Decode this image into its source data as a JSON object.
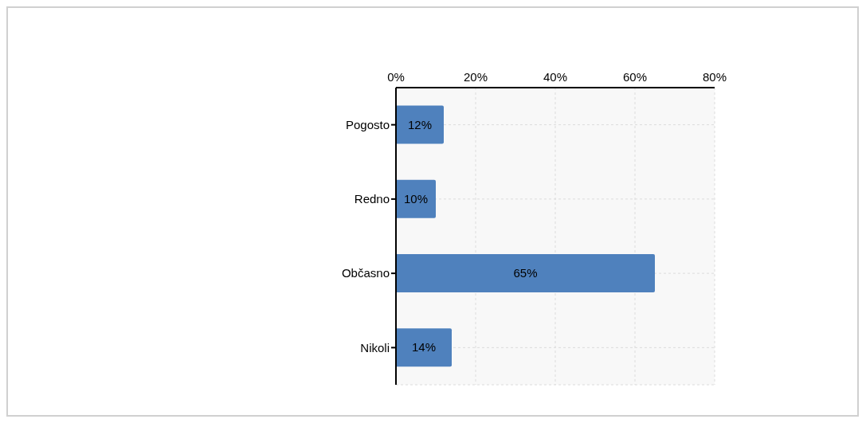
{
  "chart_data": {
    "type": "bar",
    "orientation": "horizontal",
    "categories": [
      "Pogosto",
      "Redno",
      "Občasno",
      "Nikoli"
    ],
    "values": [
      12,
      10,
      65,
      14
    ],
    "color": "#4f81bd",
    "value_labels": [
      "12%",
      "10%",
      "65%",
      "14%"
    ],
    "xlim": [
      0,
      80
    ],
    "xticks": [
      {
        "value": 0,
        "label": "0%"
      },
      {
        "value": 20,
        "label": "20%"
      },
      {
        "value": 40,
        "label": "40%"
      },
      {
        "value": 60,
        "label": "60%"
      },
      {
        "value": 80,
        "label": "80%"
      }
    ],
    "grid": true
  }
}
